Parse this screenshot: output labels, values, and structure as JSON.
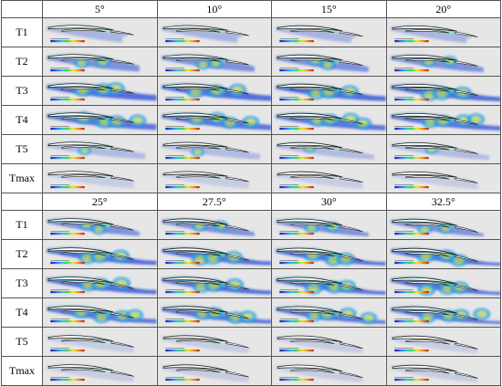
{
  "blocks": [
    {
      "angles": [
        "5°",
        "10°",
        "15°",
        "20°"
      ],
      "rows": [
        {
          "label": "T1",
          "field": "weak"
        },
        {
          "label": "T2",
          "field": "medium"
        },
        {
          "label": "T3",
          "field": "strong"
        },
        {
          "label": "T4",
          "field": "wake"
        },
        {
          "label": "T5",
          "field": "thin"
        },
        {
          "label": "Tmax",
          "field": "faint"
        }
      ]
    },
    {
      "angles": [
        "25°",
        "27.5°",
        "30°",
        "32.5°"
      ],
      "rows": [
        {
          "label": "T1",
          "field": "medium"
        },
        {
          "label": "T2",
          "field": "strong"
        },
        {
          "label": "T3",
          "field": "strong"
        },
        {
          "label": "T4",
          "field": "wake"
        },
        {
          "label": "T5",
          "field": "faint"
        },
        {
          "label": "Tmax",
          "field": "faint"
        }
      ]
    }
  ],
  "colors": {
    "cell_background": "#e6e6e6",
    "airfoil_fill": "#ffffff",
    "airfoil_stroke": "#222222",
    "colormap": [
      "#1a1aa8",
      "#2f6cf0",
      "#25c4e8",
      "#41d35a",
      "#f3e526",
      "#f08a1c",
      "#c21a12"
    ]
  },
  "icons": {
    "airfoil": "airfoil-contour-icon",
    "colorbar": "colorbar-legend-icon"
  }
}
